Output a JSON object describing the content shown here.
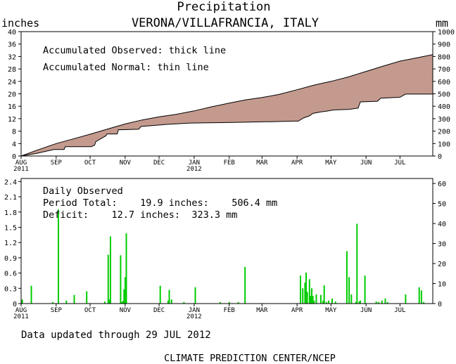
{
  "header": {
    "title": "Precipitation",
    "station": "VERONA/VILLAFRANCIA, ITALY",
    "left_unit": "inches",
    "right_unit": "mm"
  },
  "top_panel": {
    "legend_observed": "Accumulated Observed: thick line",
    "legend_normal": "Accumulated Normal: thin line",
    "fill_color": "#c49a8e"
  },
  "bottom_panel": {
    "label_daily": "Daily Observed",
    "label_period": "Period Total:    19.9 inches:    506.4 mm",
    "label_deficit": "Deficit:    12.7 inches:  323.3 mm",
    "bar_color": "#00cc00"
  },
  "footer": {
    "updated": "Data updated through 29 JUL 2012",
    "credit": "CLIMATE PREDICTION CENTER/NCEP"
  },
  "x_axis": {
    "months": [
      "AUG",
      "SEP",
      "OCT",
      "NOV",
      "DEC",
      "JAN",
      "FEB",
      "MAR",
      "APR",
      "MAY",
      "JUN",
      "JUL"
    ],
    "year_2011": "2011",
    "year_2012": "2012"
  },
  "chart_data": [
    {
      "type": "area",
      "x_unit": "days since 1 AUG 2011",
      "xlim": [
        0,
        364
      ],
      "ylabel": "inches",
      "ylabel_right": "mm",
      "ylim": [
        0,
        40
      ],
      "ylim_right": [
        0,
        1000
      ],
      "yticks": [
        0,
        4,
        8,
        12,
        16,
        20,
        24,
        28,
        32,
        36,
        40
      ],
      "yticks_right": [
        0,
        100,
        200,
        300,
        400,
        500,
        600,
        700,
        800,
        900,
        1000
      ],
      "series": [
        {
          "name": "Accumulated Normal",
          "x": [
            0,
            15,
            31,
            46,
            61,
            76,
            92,
            107,
            122,
            137,
            153,
            168,
            184,
            198,
            213,
            228,
            244,
            259,
            274,
            289,
            305,
            320,
            335,
            350,
            364
          ],
          "y": [
            0,
            2.0,
            4.0,
            5.5,
            7.0,
            8.6,
            10.3,
            11.6,
            12.6,
            13.4,
            14.5,
            15.8,
            17.0,
            18.0,
            18.8,
            19.8,
            21.3,
            22.8,
            24.0,
            25.4,
            27.2,
            28.9,
            30.5,
            31.6,
            32.6
          ]
        },
        {
          "name": "Accumulated Observed",
          "x": [
            0,
            13,
            29,
            38,
            39,
            62,
            65,
            66,
            75,
            76,
            85,
            86,
            104,
            106,
            130,
            150,
            187,
            216,
            220,
            240,
            245,
            250,
            255,
            258,
            265,
            270,
            276,
            290,
            298,
            300,
            315,
            318,
            335,
            340,
            364
          ],
          "y": [
            0,
            0.8,
            2.1,
            2.1,
            3.0,
            3.0,
            3.5,
            4.6,
            6.5,
            7.1,
            7.1,
            8.4,
            8.6,
            9.5,
            10.2,
            10.6,
            10.8,
            11.0,
            11.0,
            11.2,
            11.2,
            12.3,
            12.9,
            13.7,
            14.2,
            14.4,
            14.8,
            15.0,
            15.4,
            17.4,
            17.6,
            18.6,
            18.9,
            19.9,
            19.9
          ]
        }
      ]
    },
    {
      "type": "bar",
      "title": "Daily Observed",
      "x_unit": "days since 1 AUG 2011",
      "xlim": [
        0,
        364
      ],
      "ylabel": "inches",
      "ylabel_right": "mm",
      "ylim": [
        0,
        2.46
      ],
      "yticks": [
        0,
        0.3,
        0.6,
        0.9,
        1.2,
        1.5,
        1.8,
        2.1,
        2.4
      ],
      "yticks_right": [
        0,
        10,
        20,
        30,
        40,
        50,
        60
      ],
      "series": [
        {
          "name": "Daily Observed",
          "x": [
            1,
            9,
            28,
            33,
            40,
            47,
            58,
            74,
            77,
            78,
            79,
            88,
            89,
            90,
            91,
            92,
            93,
            123,
            130,
            131,
            133,
            144,
            154,
            176,
            184,
            192,
            198,
            247,
            249,
            251,
            252,
            253,
            255,
            256,
            257,
            258,
            259,
            261,
            265,
            267,
            268,
            270,
            272,
            275,
            278,
            288,
            290,
            292,
            296,
            297,
            299,
            300,
            304,
            314,
            316,
            319,
            322,
            324,
            340,
            352,
            354,
            356
          ],
          "y": [
            0.08,
            0.35,
            0.03,
            1.85,
            0.06,
            0.17,
            0.24,
            0.04,
            0.96,
            0.08,
            1.32,
            0.95,
            0.03,
            0.05,
            0.28,
            0.52,
            1.38,
            0.35,
            0.06,
            0.27,
            0.08,
            0.03,
            0.32,
            0.03,
            0.03,
            0.03,
            0.72,
            0.55,
            0.3,
            0.41,
            0.61,
            0.23,
            0.48,
            0.15,
            0.3,
            0.15,
            0.06,
            0.18,
            0.17,
            0.06,
            0.36,
            0.03,
            0.06,
            0.1,
            0.04,
            1.03,
            0.52,
            0.18,
            0.03,
            1.57,
            0.04,
            0.06,
            0.55,
            0.04,
            0.03,
            0.06,
            0.1,
            0.03,
            0.18,
            0.32,
            0.26,
            0.03
          ]
        }
      ]
    }
  ]
}
